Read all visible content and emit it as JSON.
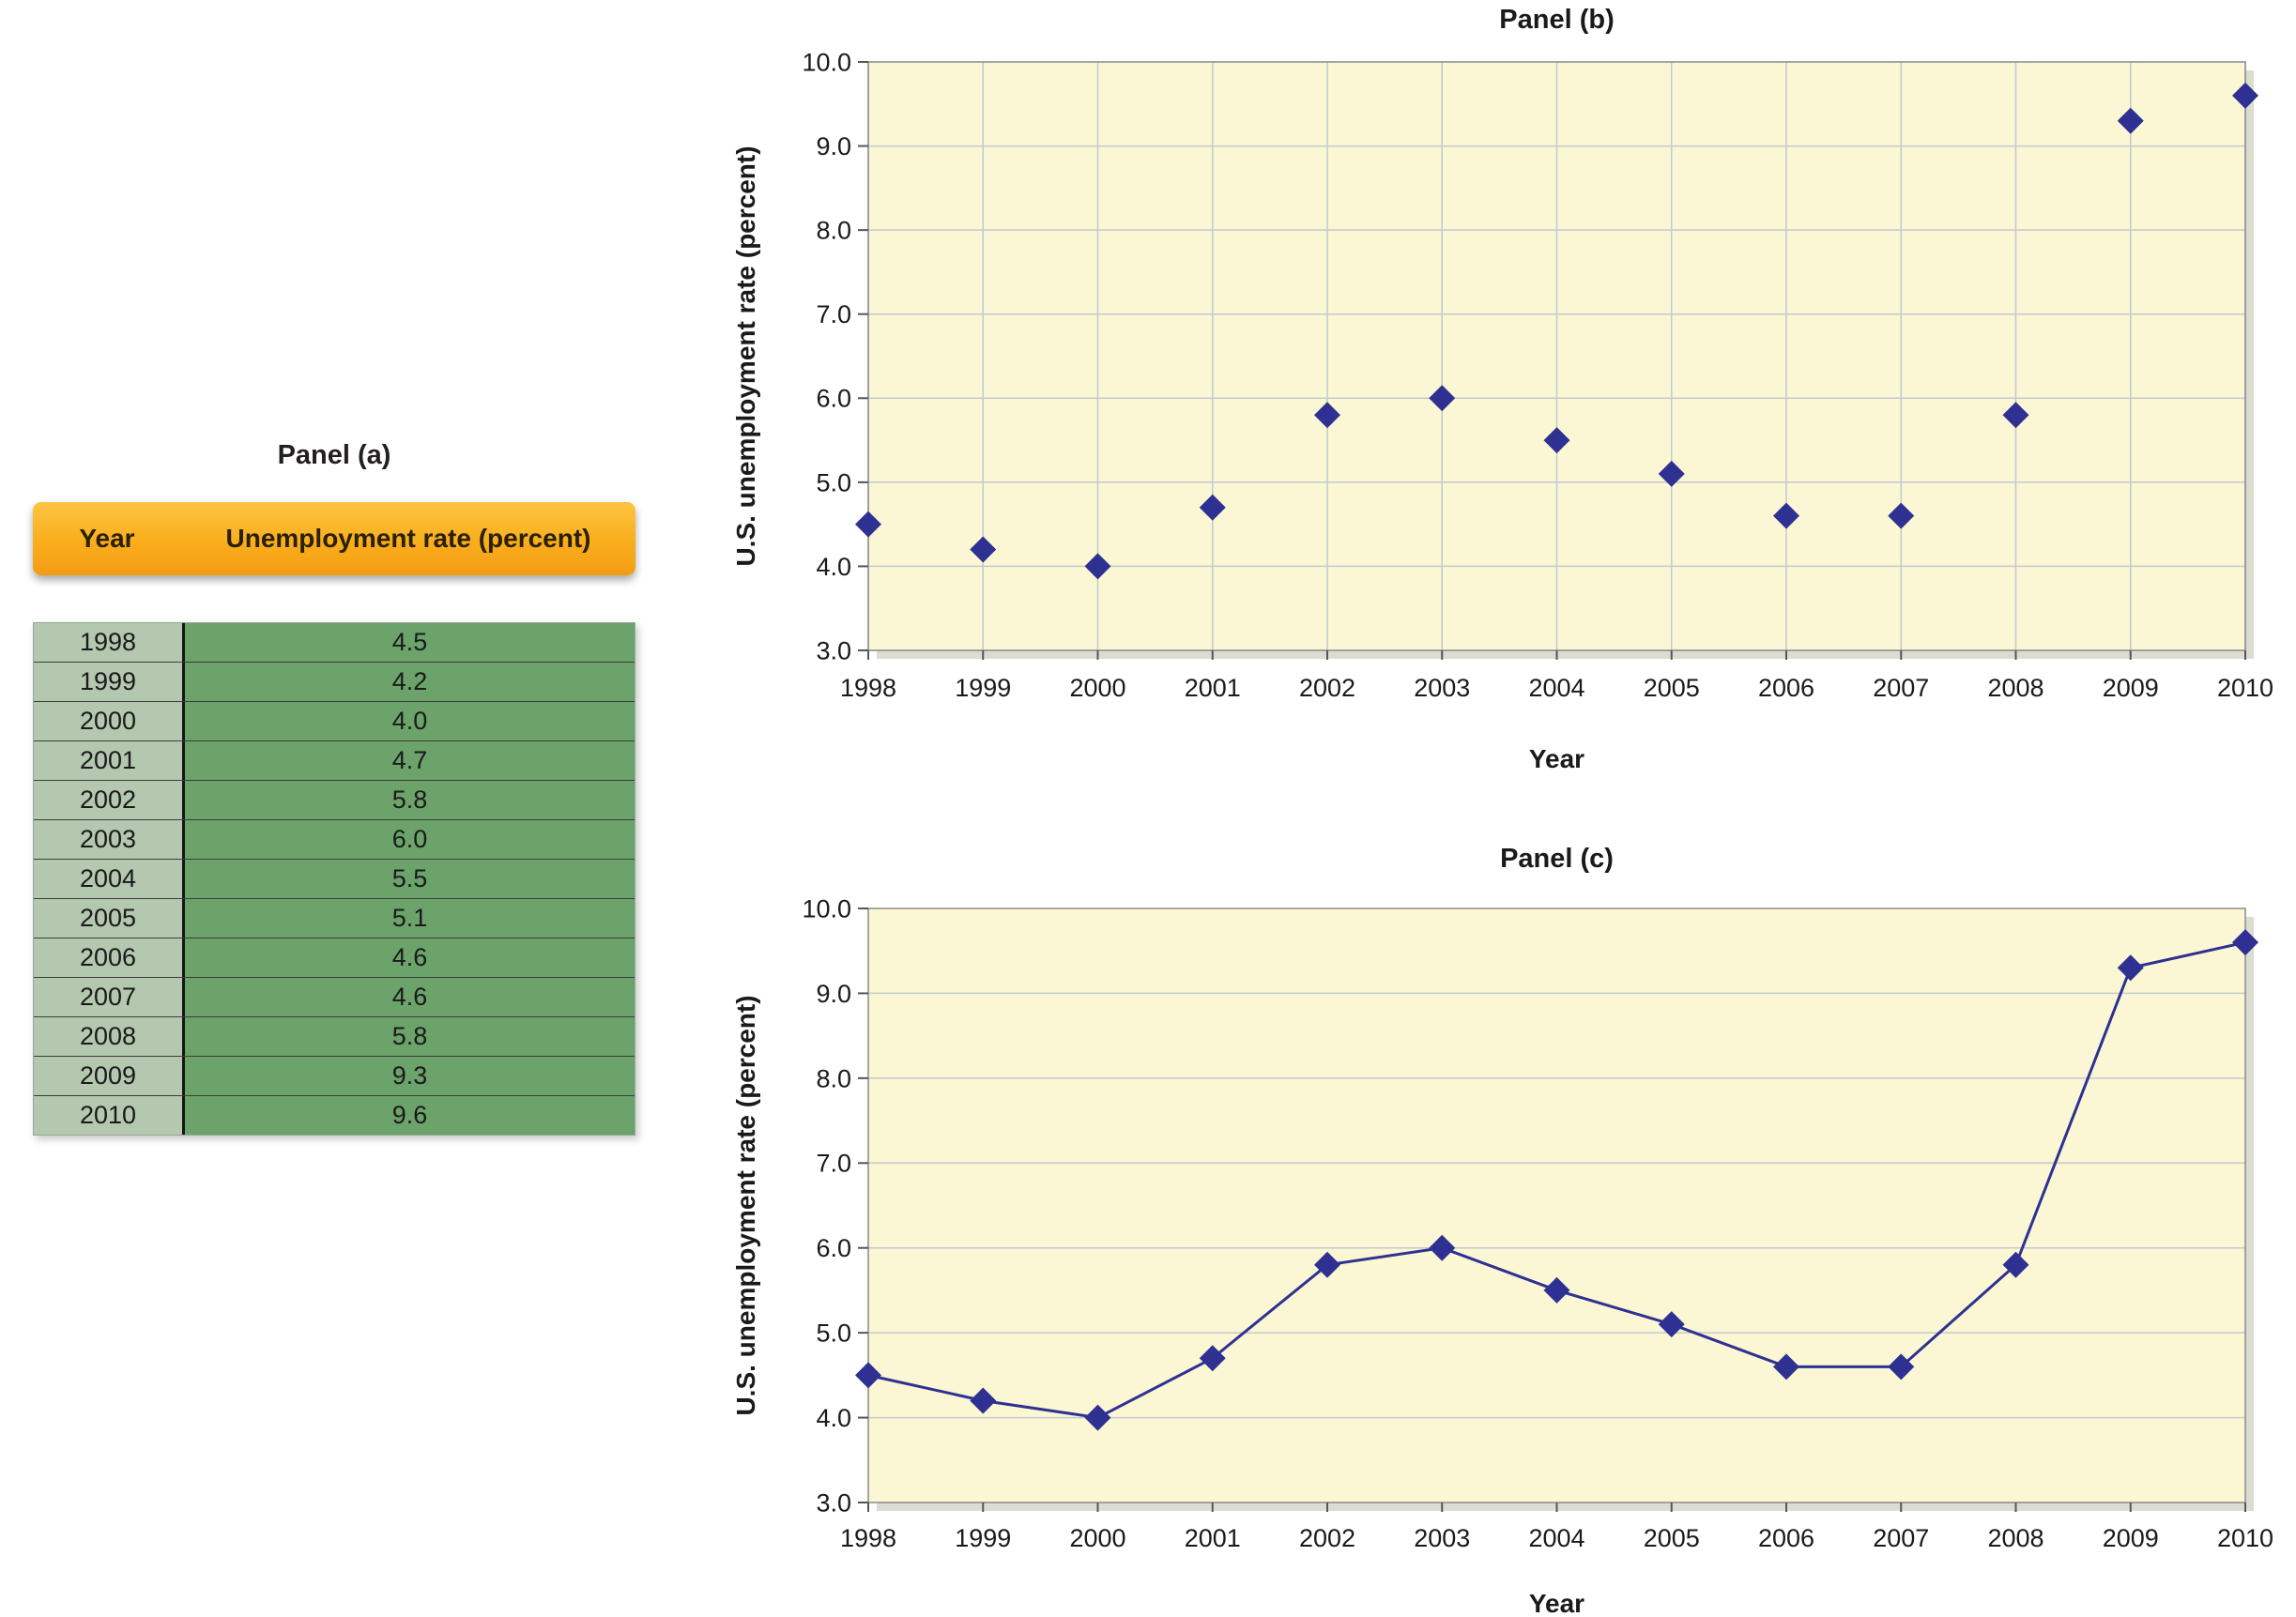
{
  "figure_title": "",
  "panel_a": {
    "title": "Panel (a)",
    "columns": [
      "Year",
      "Unemployment rate (percent)"
    ],
    "rows": [
      [
        "1998",
        "4.5"
      ],
      [
        "1999",
        "4.2"
      ],
      [
        "2000",
        "4.0"
      ],
      [
        "2001",
        "4.7"
      ],
      [
        "2002",
        "5.8"
      ],
      [
        "2003",
        "6.0"
      ],
      [
        "2004",
        "5.5"
      ],
      [
        "2005",
        "5.1"
      ],
      [
        "2006",
        "4.6"
      ],
      [
        "2007",
        "4.6"
      ],
      [
        "2008",
        "5.8"
      ],
      [
        "2009",
        "9.3"
      ],
      [
        "2010",
        "9.6"
      ]
    ]
  },
  "chart_data": [
    {
      "type": "table",
      "title": "Panel (a)",
      "columns": [
        "Year",
        "Unemployment rate (percent)"
      ],
      "rows": [
        [
          1998,
          4.5
        ],
        [
          1999,
          4.2
        ],
        [
          2000,
          4.0
        ],
        [
          2001,
          4.7
        ],
        [
          2002,
          5.8
        ],
        [
          2003,
          6.0
        ],
        [
          2004,
          5.5
        ],
        [
          2005,
          5.1
        ],
        [
          2006,
          4.6
        ],
        [
          2007,
          4.6
        ],
        [
          2008,
          5.8
        ],
        [
          2009,
          9.3
        ],
        [
          2010,
          9.6
        ]
      ]
    },
    {
      "type": "scatter",
      "title": "Panel (b)",
      "x": [
        1998,
        1999,
        2000,
        2001,
        2002,
        2003,
        2004,
        2005,
        2006,
        2007,
        2008,
        2009,
        2010
      ],
      "y": [
        4.5,
        4.2,
        4.0,
        4.7,
        5.8,
        6.0,
        5.5,
        5.1,
        4.6,
        4.6,
        5.8,
        9.3,
        9.6
      ],
      "xlabel": "Year",
      "ylabel": "U.S. unemployment rate (percent)",
      "ylim": [
        3.0,
        10.0
      ],
      "ytick_step": 1.0,
      "grid": "horizontal+vertical",
      "legend": "none"
    },
    {
      "type": "line",
      "title": "Panel (c)",
      "x": [
        1998,
        1999,
        2000,
        2001,
        2002,
        2003,
        2004,
        2005,
        2006,
        2007,
        2008,
        2009,
        2010
      ],
      "y": [
        4.5,
        4.2,
        4.0,
        4.7,
        5.8,
        6.0,
        5.5,
        5.1,
        4.6,
        4.6,
        5.8,
        9.3,
        9.6
      ],
      "xlabel": "Year",
      "ylabel": "U.S. unemployment rate (percent)",
      "ylim": [
        3.0,
        10.0
      ],
      "ytick_step": 1.0,
      "grid": "horizontal",
      "legend": "none"
    }
  ],
  "colors": {
    "plot_bg": "#fbf7d4",
    "plot_shadow": "#dddcd2",
    "grid": "#c3c9cf",
    "axis": "#8a8a8a",
    "marker": "#2e3192",
    "line": "#2e3192",
    "text": "#1a1a1a",
    "table_header_bg": "#f9ae1c",
    "table_year_bg": "#b4c7af",
    "table_value_bg": "#6ba36b"
  }
}
